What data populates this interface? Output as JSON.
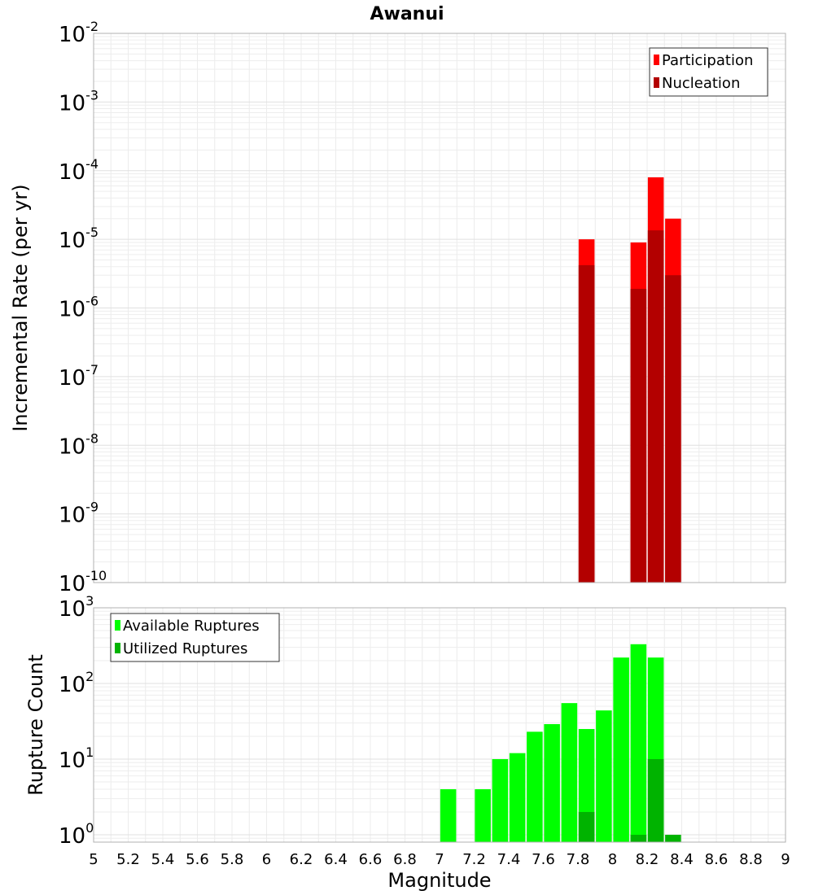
{
  "chart_data": [
    {
      "type": "bar",
      "title": "Awanui",
      "ylabel": "Incremental Rate (per yr)",
      "xlabel": "",
      "yscale": "log",
      "ylim": [
        1e-10,
        0.01
      ],
      "xlim": [
        5,
        9
      ],
      "y_ticks": [
        {
          "mantissa": "10",
          "exp": "-10"
        },
        {
          "mantissa": "10",
          "exp": "-9"
        },
        {
          "mantissa": "10",
          "exp": "-8"
        },
        {
          "mantissa": "10",
          "exp": "-7"
        },
        {
          "mantissa": "10",
          "exp": "-6"
        },
        {
          "mantissa": "10",
          "exp": "-5"
        },
        {
          "mantissa": "10",
          "exp": "-4"
        },
        {
          "mantissa": "10",
          "exp": "-3"
        },
        {
          "mantissa": "10",
          "exp": "-2"
        }
      ],
      "legend": [
        {
          "label": "Participation",
          "color": "#ff0000"
        },
        {
          "label": "Nucleation",
          "color": "#b30000"
        }
      ],
      "series": [
        {
          "name": "Participation",
          "color": "#ff0000",
          "x": [
            7.85,
            8.15,
            8.25,
            8.35
          ],
          "values": [
            1e-05,
            9e-06,
            8e-05,
            2e-05
          ]
        },
        {
          "name": "Nucleation",
          "color": "#b30000",
          "x": [
            7.85,
            8.15,
            8.25,
            8.35
          ],
          "values": [
            4.2e-06,
            1.9e-06,
            1.35e-05,
            3e-06
          ]
        }
      ]
    },
    {
      "type": "bar",
      "title": "",
      "ylabel": "Rupture Count",
      "xlabel": "Magnitude",
      "yscale": "log",
      "ylim": [
        0.8,
        1000
      ],
      "xlim": [
        5,
        9
      ],
      "x_ticks": [
        "5",
        "5.2",
        "5.4",
        "5.6",
        "5.8",
        "6",
        "6.2",
        "6.4",
        "6.6",
        "6.8",
        "7",
        "7.2",
        "7.4",
        "7.6",
        "7.8",
        "8",
        "8.2",
        "8.4",
        "8.6",
        "8.8",
        "9"
      ],
      "y_ticks": [
        {
          "mantissa": "10",
          "exp": "0"
        },
        {
          "mantissa": "10",
          "exp": "1"
        },
        {
          "mantissa": "10",
          "exp": "2"
        },
        {
          "mantissa": "10",
          "exp": "3"
        }
      ],
      "legend": [
        {
          "label": "Available Ruptures",
          "color": "#00ff00"
        },
        {
          "label": "Utilized Ruptures",
          "color": "#00b300"
        }
      ],
      "series": [
        {
          "name": "Available Ruptures",
          "color": "#00ff00",
          "x": [
            7.05,
            7.25,
            7.35,
            7.45,
            7.55,
            7.65,
            7.75,
            7.85,
            7.95,
            8.05,
            8.15,
            8.25
          ],
          "values": [
            4,
            4,
            10,
            12,
            23,
            29,
            55,
            25,
            44,
            220,
            330,
            220
          ]
        },
        {
          "name": "Utilized Ruptures",
          "color": "#00b300",
          "x": [
            7.85,
            8.15,
            8.25,
            8.35
          ],
          "values": [
            2,
            1,
            10,
            1
          ]
        }
      ]
    }
  ]
}
